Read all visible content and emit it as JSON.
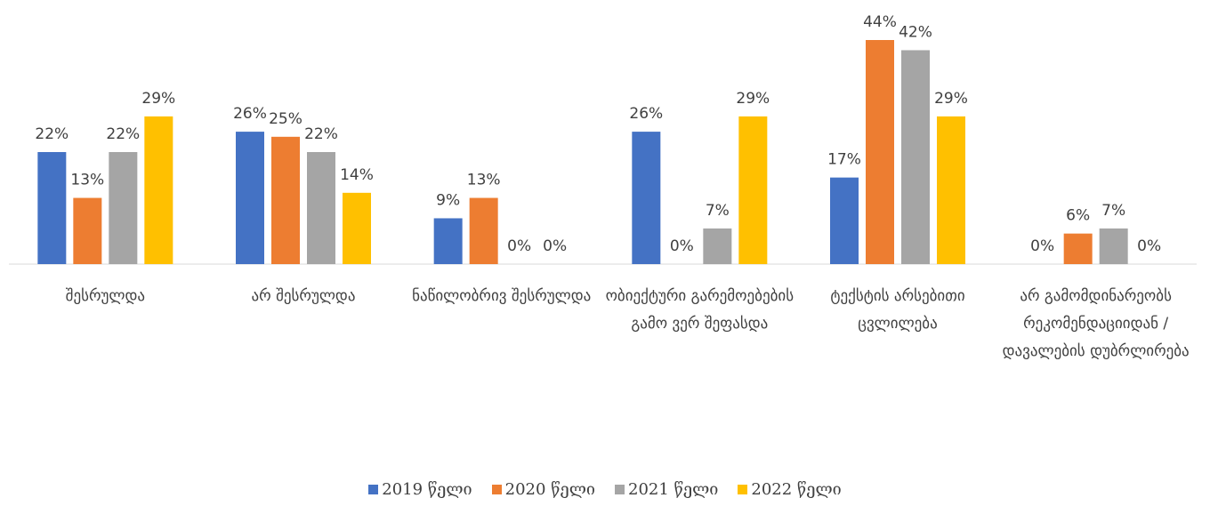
{
  "chart_data": {
    "type": "bar",
    "categories": [
      "შესრულდა",
      "არ შესრულდა",
      "ნაწილობრივ შესრულდა",
      "ობიექტური გარემოებების გამო ვერ შეფასდა",
      "ტექსტის არსებითი ცვლილება",
      "არ გამომდინარეობს რეკომენდაციიდან / დავალების დუბრლირება"
    ],
    "series": [
      {
        "name": "2019 წელი",
        "color": "#4472c4",
        "values": [
          22,
          26,
          9,
          26,
          17,
          0
        ],
        "value_labels": [
          "22%",
          "26%",
          "9%",
          "26%",
          "17%",
          "0%"
        ]
      },
      {
        "name": "2020 წელი",
        "color": "#ed7d31",
        "values": [
          13,
          25,
          13,
          0,
          44,
          6
        ],
        "value_labels": [
          "13%",
          "25%",
          "13%",
          "0%",
          "44%",
          "6%"
        ]
      },
      {
        "name": "2021 წელი",
        "color": "#a5a5a5",
        "values": [
          22,
          22,
          0,
          7,
          42,
          7
        ],
        "value_labels": [
          "22%",
          "22%",
          "0%",
          "7%",
          "42%",
          "7%"
        ]
      },
      {
        "name": "2022 წელი",
        "color": "#ffc000",
        "values": [
          29,
          14,
          0,
          29,
          29,
          0
        ],
        "value_labels": [
          "29%",
          "14%",
          "0%",
          "29%",
          "29%",
          "0%"
        ]
      }
    ],
    "legend": "bottom"
  }
}
